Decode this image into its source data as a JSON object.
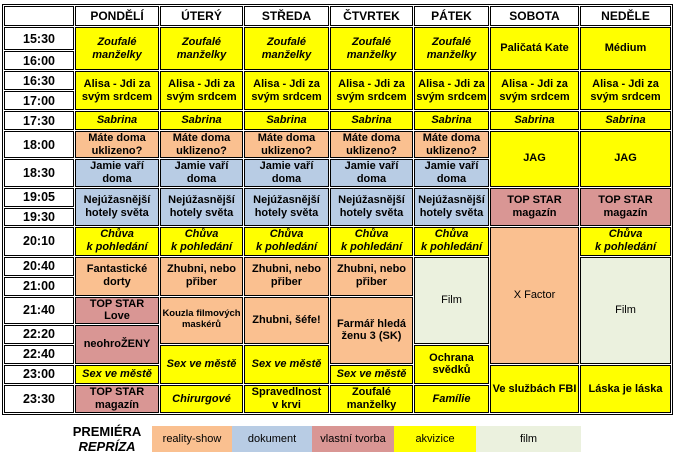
{
  "schedule": {
    "days": [
      "PONDĚLÍ",
      "ÚTERÝ",
      "STŘEDA",
      "ČTVRTEK",
      "PÁTEK",
      "SOBOTA",
      "NEDĚLE"
    ],
    "times": [
      "15:30",
      "16:00",
      "16:30",
      "17:00",
      "17:30",
      "18:00",
      "18:30",
      "19:05",
      "19:30",
      "20:10",
      "20:40",
      "21:00",
      "21:40",
      "22:20",
      "22:40",
      "23:00",
      "23:30"
    ],
    "cells": [
      {
        "day": 0,
        "row": 0,
        "span": 2,
        "title": "Zoufalé\nmanželky",
        "category": "akvizice",
        "style": "rerun"
      },
      {
        "day": 0,
        "row": 2,
        "span": 2,
        "title": "Alisa - Jdi za\nsvým srdcem",
        "category": "akvizice",
        "style": "premiere"
      },
      {
        "day": 0,
        "row": 4,
        "span": 1,
        "title": "Sabrina",
        "category": "akvizice",
        "style": "rerun"
      },
      {
        "day": 0,
        "row": 5,
        "span": 1,
        "title": "Máte doma\nuklizeno?",
        "category": "reality-show",
        "style": "premiere"
      },
      {
        "day": 0,
        "row": 6,
        "span": 1,
        "title": "Jamie vaří doma",
        "category": "dokument",
        "style": "premiere"
      },
      {
        "day": 0,
        "row": 7,
        "span": 2,
        "title": "Nejúžasnější\nhotely světa",
        "category": "dokument",
        "style": "premiere"
      },
      {
        "day": 0,
        "row": 9,
        "span": 1,
        "title": "Chůva\nk pohledání",
        "category": "akvizice",
        "style": "rerun"
      },
      {
        "day": 0,
        "row": 10,
        "span": 2,
        "title": "Fantastické\ndorty",
        "category": "reality-show",
        "style": "premiere"
      },
      {
        "day": 0,
        "row": 12,
        "span": 1,
        "title": "TOP STAR Love",
        "category": "vlastni-tvorba",
        "style": "premiere"
      },
      {
        "day": 0,
        "row": 13,
        "span": 2,
        "title": "neohroŽENY",
        "category": "vlastni-tvorba",
        "style": "premiere"
      },
      {
        "day": 0,
        "row": 15,
        "span": 1,
        "title": "Sex ve městě",
        "category": "akvizice",
        "style": "rerun"
      },
      {
        "day": 0,
        "row": 16,
        "span": 1,
        "title": "TOP STAR\nmagazín",
        "category": "vlastni-tvorba",
        "style": "premiere"
      },
      {
        "day": 1,
        "row": 0,
        "span": 2,
        "title": "Zoufalé\nmanželky",
        "category": "akvizice",
        "style": "rerun"
      },
      {
        "day": 1,
        "row": 2,
        "span": 2,
        "title": "Alisa - Jdi za\nsvým srdcem",
        "category": "akvizice",
        "style": "premiere"
      },
      {
        "day": 1,
        "row": 4,
        "span": 1,
        "title": "Sabrina",
        "category": "akvizice",
        "style": "rerun"
      },
      {
        "day": 1,
        "row": 5,
        "span": 1,
        "title": "Máte doma\nuklizeno?",
        "category": "reality-show",
        "style": "premiere"
      },
      {
        "day": 1,
        "row": 6,
        "span": 1,
        "title": "Jamie vaří doma",
        "category": "dokument",
        "style": "premiere"
      },
      {
        "day": 1,
        "row": 7,
        "span": 2,
        "title": "Nejúžasnější\nhotely světa",
        "category": "dokument",
        "style": "premiere"
      },
      {
        "day": 1,
        "row": 9,
        "span": 1,
        "title": "Chůva\nk pohledání",
        "category": "akvizice",
        "style": "rerun"
      },
      {
        "day": 1,
        "row": 10,
        "span": 2,
        "title": "Zhubni, nebo\npřiber",
        "category": "reality-show",
        "style": "premiere"
      },
      {
        "day": 1,
        "row": 12,
        "span": 2,
        "title": "Kouzla filmových\nmaskérů",
        "category": "reality-show",
        "style": "premiere",
        "small": true
      },
      {
        "day": 1,
        "row": 14,
        "span": 2,
        "title": "Sex ve městě",
        "category": "akvizice",
        "style": "rerun"
      },
      {
        "day": 1,
        "row": 16,
        "span": 1,
        "title": "Chirurgové",
        "category": "akvizice",
        "style": "rerun"
      },
      {
        "day": 2,
        "row": 0,
        "span": 2,
        "title": "Zoufalé\nmanželky",
        "category": "akvizice",
        "style": "rerun"
      },
      {
        "day": 2,
        "row": 2,
        "span": 2,
        "title": "Alisa - Jdi za\nsvým srdcem",
        "category": "akvizice",
        "style": "premiere"
      },
      {
        "day": 2,
        "row": 4,
        "span": 1,
        "title": "Sabrina",
        "category": "akvizice",
        "style": "rerun"
      },
      {
        "day": 2,
        "row": 5,
        "span": 1,
        "title": "Máte doma\nuklizeno?",
        "category": "reality-show",
        "style": "premiere"
      },
      {
        "day": 2,
        "row": 6,
        "span": 1,
        "title": "Jamie vaří doma",
        "category": "dokument",
        "style": "premiere"
      },
      {
        "day": 2,
        "row": 7,
        "span": 2,
        "title": "Nejúžasnější\nhotely světa",
        "category": "dokument",
        "style": "premiere"
      },
      {
        "day": 2,
        "row": 9,
        "span": 1,
        "title": "Chůva\nk pohledání",
        "category": "akvizice",
        "style": "rerun"
      },
      {
        "day": 2,
        "row": 10,
        "span": 2,
        "title": "Zhubni, nebo\npřiber",
        "category": "reality-show",
        "style": "premiere"
      },
      {
        "day": 2,
        "row": 12,
        "span": 2,
        "title": "Zhubni, šéfe!",
        "category": "reality-show",
        "style": "premiere"
      },
      {
        "day": 2,
        "row": 14,
        "span": 2,
        "title": "Sex ve městě",
        "category": "akvizice",
        "style": "rerun"
      },
      {
        "day": 2,
        "row": 16,
        "span": 1,
        "title": "Spravedlnost\nv krvi",
        "category": "akvizice",
        "style": "premiere"
      },
      {
        "day": 3,
        "row": 0,
        "span": 2,
        "title": "Zoufalé\nmanželky",
        "category": "akvizice",
        "style": "rerun"
      },
      {
        "day": 3,
        "row": 2,
        "span": 2,
        "title": "Alisa - Jdi za\nsvým srdcem",
        "category": "akvizice",
        "style": "premiere"
      },
      {
        "day": 3,
        "row": 4,
        "span": 1,
        "title": "Sabrina",
        "category": "akvizice",
        "style": "rerun"
      },
      {
        "day": 3,
        "row": 5,
        "span": 1,
        "title": "Máte doma\nuklizeno?",
        "category": "reality-show",
        "style": "premiere"
      },
      {
        "day": 3,
        "row": 6,
        "span": 1,
        "title": "Jamie vaří doma",
        "category": "dokument",
        "style": "premiere"
      },
      {
        "day": 3,
        "row": 7,
        "span": 2,
        "title": "Nejúžasnější\nhotely světa",
        "category": "dokument",
        "style": "premiere"
      },
      {
        "day": 3,
        "row": 9,
        "span": 1,
        "title": "Chůva\nk pohledání",
        "category": "akvizice",
        "style": "rerun"
      },
      {
        "day": 3,
        "row": 10,
        "span": 2,
        "title": "Zhubni, nebo\npřiber",
        "category": "reality-show",
        "style": "premiere"
      },
      {
        "day": 3,
        "row": 12,
        "span": 3,
        "title": "Farmář hledá\nženu 3 (SK)",
        "category": "reality-show",
        "style": "premiere"
      },
      {
        "day": 3,
        "row": 15,
        "span": 1,
        "title": "Sex ve městě",
        "category": "akvizice",
        "style": "rerun"
      },
      {
        "day": 3,
        "row": 16,
        "span": 1,
        "title": "Zoufalé\nmanželky",
        "category": "akvizice",
        "style": "premiere"
      },
      {
        "day": 4,
        "row": 0,
        "span": 2,
        "title": "Zoufalé\nmanželky",
        "category": "akvizice",
        "style": "rerun"
      },
      {
        "day": 4,
        "row": 2,
        "span": 2,
        "title": "Alisa - Jdi za\nsvým srdcem",
        "category": "akvizice",
        "style": "premiere"
      },
      {
        "day": 4,
        "row": 4,
        "span": 1,
        "title": "Sabrina",
        "category": "akvizice",
        "style": "rerun"
      },
      {
        "day": 4,
        "row": 5,
        "span": 1,
        "title": "Máte doma\nuklizeno?",
        "category": "reality-show",
        "style": "premiere"
      },
      {
        "day": 4,
        "row": 6,
        "span": 1,
        "title": "Jamie vaří doma",
        "category": "dokument",
        "style": "premiere"
      },
      {
        "day": 4,
        "row": 7,
        "span": 2,
        "title": "Nejúžasnější\nhotely světa",
        "category": "dokument",
        "style": "premiere"
      },
      {
        "day": 4,
        "row": 9,
        "span": 1,
        "title": "Chůva\nk pohledání",
        "category": "akvizice",
        "style": "rerun"
      },
      {
        "day": 4,
        "row": 10,
        "span": 4,
        "title": "Film",
        "category": "film",
        "style": "plain"
      },
      {
        "day": 4,
        "row": 14,
        "span": 2,
        "title": "Ochrana svědků",
        "category": "akvizice",
        "style": "premiere"
      },
      {
        "day": 4,
        "row": 16,
        "span": 1,
        "title": "Famílie",
        "category": "akvizice",
        "style": "rerun"
      },
      {
        "day": 5,
        "row": 0,
        "span": 2,
        "title": "Paličatá Kate",
        "category": "akvizice",
        "style": "premiere"
      },
      {
        "day": 5,
        "row": 2,
        "span": 2,
        "title": "Alisa - Jdi za\nsvým srdcem",
        "category": "akvizice",
        "style": "premiere"
      },
      {
        "day": 5,
        "row": 4,
        "span": 1,
        "title": "Sabrina",
        "category": "akvizice",
        "style": "rerun"
      },
      {
        "day": 5,
        "row": 5,
        "span": 2,
        "title": "JAG",
        "category": "akvizice",
        "style": "premiere"
      },
      {
        "day": 5,
        "row": 7,
        "span": 2,
        "title": "TOP STAR\nmagazín",
        "category": "vlastni-tvorba",
        "style": "premiere"
      },
      {
        "day": 5,
        "row": 9,
        "span": 6,
        "title": "X Factor",
        "category": "reality-show",
        "style": "plain"
      },
      {
        "day": 5,
        "row": 15,
        "span": 2,
        "title": "Ve službách FBI",
        "category": "akvizice",
        "style": "premiere"
      },
      {
        "day": 6,
        "row": 0,
        "span": 2,
        "title": "Médium",
        "category": "akvizice",
        "style": "premiere"
      },
      {
        "day": 6,
        "row": 2,
        "span": 2,
        "title": "Alisa - Jdi za\nsvým srdcem",
        "category": "akvizice",
        "style": "premiere"
      },
      {
        "day": 6,
        "row": 4,
        "span": 1,
        "title": "Sabrina",
        "category": "akvizice",
        "style": "rerun"
      },
      {
        "day": 6,
        "row": 5,
        "span": 2,
        "title": "JAG",
        "category": "akvizice",
        "style": "premiere"
      },
      {
        "day": 6,
        "row": 7,
        "span": 2,
        "title": "TOP STAR\nmagazín",
        "category": "vlastni-tvorba",
        "style": "premiere"
      },
      {
        "day": 6,
        "row": 9,
        "span": 1,
        "title": "Chůva\nk pohledání",
        "category": "akvizice",
        "style": "rerun"
      },
      {
        "day": 6,
        "row": 10,
        "span": 5,
        "title": "Film",
        "category": "film",
        "style": "plain"
      },
      {
        "day": 6,
        "row": 15,
        "span": 2,
        "title": "Láska je láska",
        "category": "akvizice",
        "style": "premiere"
      }
    ]
  },
  "legend": {
    "premiere_label": "PREMIÉRA",
    "rerun_label": "REPRÍZA",
    "categories": [
      {
        "key": "reality-show",
        "label": "reality-show",
        "color": "#FAC090"
      },
      {
        "key": "dokument",
        "label": "dokument",
        "color": "#B8CCE4"
      },
      {
        "key": "vlastni-tvorba",
        "label": "vlastní tvorba",
        "color": "#D99694"
      },
      {
        "key": "akvizice",
        "label": "akvizice",
        "color": "#FFFF00"
      },
      {
        "key": "film",
        "label": "film",
        "color": "#EBF1DE"
      }
    ]
  }
}
